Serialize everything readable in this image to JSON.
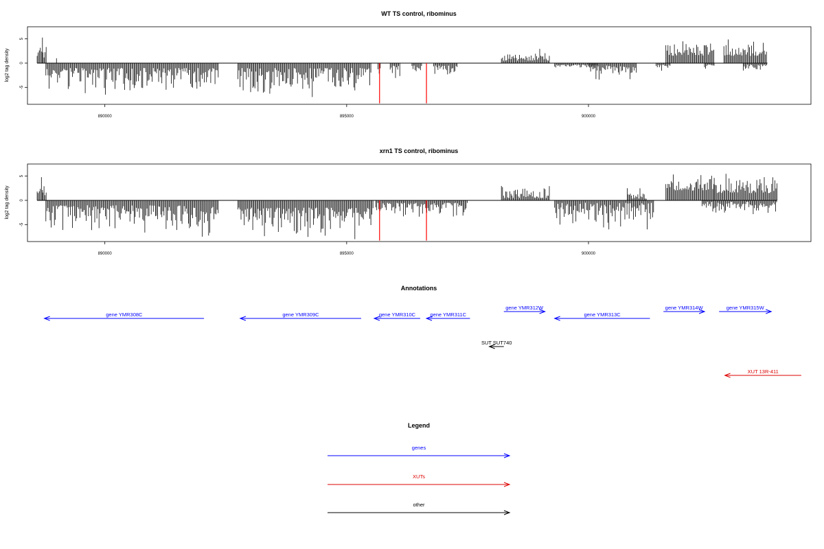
{
  "colors": {
    "bars": "#000000",
    "highlight": "#ff0000",
    "genes": "#0000ff",
    "xuts": "#dd0000",
    "other": "#000000"
  },
  "chart_data": [
    {
      "type": "bar",
      "title": "WT TS control, ribominus",
      "ylabel": "log2 tag density",
      "xlim": [
        888400,
        904600
      ],
      "ylim": [
        -8.5,
        7.5
      ],
      "xticks": [
        890000,
        895000,
        900000
      ],
      "yticks": [
        5,
        0,
        -5
      ],
      "segments": [
        {
          "start": 888600,
          "end": 888720,
          "sign": 1,
          "min": 1.5,
          "max": 6.0
        },
        {
          "start": 888720,
          "end": 888800,
          "sign": 1,
          "min": 1.0,
          "max": 3.8
        },
        {
          "start": 888780,
          "end": 892350,
          "sign": -1,
          "min": 1.0,
          "max": 6.5
        },
        {
          "start": 892750,
          "end": 895500,
          "sign": -1,
          "min": 1.0,
          "max": 7.0
        },
        {
          "start": 895650,
          "end": 895700,
          "sign": -1,
          "min": 1.0,
          "max": 2.5
        },
        {
          "start": 895900,
          "end": 896100,
          "sign": -1,
          "min": 0.5,
          "max": 3.5
        },
        {
          "start": 896350,
          "end": 896550,
          "sign": -1,
          "min": 0.5,
          "max": 2.0
        },
        {
          "start": 896800,
          "end": 897300,
          "sign": -1,
          "min": 0.5,
          "max": 2.5
        },
        {
          "start": 898200,
          "end": 899200,
          "sign": 1,
          "min": 0.5,
          "max": 3.0
        },
        {
          "start": 899300,
          "end": 900200,
          "sign": -1,
          "min": 0.3,
          "max": 1.2
        },
        {
          "start": 900000,
          "end": 901000,
          "sign": -1,
          "min": 0.5,
          "max": 4.0
        },
        {
          "start": 901400,
          "end": 901700,
          "sign": -1,
          "min": 0.3,
          "max": 2.0
        },
        {
          "start": 901600,
          "end": 902600,
          "sign": 1,
          "min": 1.5,
          "max": 5.0
        },
        {
          "start": 902400,
          "end": 902600,
          "sign": -1,
          "min": 0.3,
          "max": 1.5
        },
        {
          "start": 902800,
          "end": 903700,
          "sign": 1,
          "min": 1.5,
          "max": 5.0
        },
        {
          "start": 903200,
          "end": 903700,
          "sign": -1,
          "min": 0.3,
          "max": 2.0
        }
      ],
      "spikes": [
        {
          "x": 889000,
          "y": 1.0
        }
      ],
      "highlights": [
        {
          "x": 895680,
          "y": -8.3
        },
        {
          "x": 896650,
          "y": -8.3
        }
      ]
    },
    {
      "type": "bar",
      "title": "xrn1 TS control, ribominus",
      "ylabel": "log2 tag density",
      "xlim": [
        888400,
        904600
      ],
      "ylim": [
        -8.5,
        7.5
      ],
      "xticks": [
        890000,
        895000,
        900000
      ],
      "yticks": [
        5,
        0,
        -5
      ],
      "segments": [
        {
          "start": 888600,
          "end": 888720,
          "sign": 1,
          "min": 1.5,
          "max": 6.5
        },
        {
          "start": 888720,
          "end": 888800,
          "sign": 1,
          "min": 1.0,
          "max": 3.8
        },
        {
          "start": 888780,
          "end": 892350,
          "sign": -1,
          "min": 1.0,
          "max": 7.5
        },
        {
          "start": 892750,
          "end": 895550,
          "sign": -1,
          "min": 1.5,
          "max": 8.0
        },
        {
          "start": 895600,
          "end": 897500,
          "sign": -1,
          "min": 0.5,
          "max": 4.0
        },
        {
          "start": 898200,
          "end": 899200,
          "sign": 1,
          "min": 0.5,
          "max": 3.5
        },
        {
          "start": 899300,
          "end": 901350,
          "sign": -1,
          "min": 0.5,
          "max": 6.0
        },
        {
          "start": 900800,
          "end": 901200,
          "sign": 1,
          "min": 0.3,
          "max": 2.5
        },
        {
          "start": 901600,
          "end": 902600,
          "sign": 1,
          "min": 2.0,
          "max": 6.0
        },
        {
          "start": 902350,
          "end": 903900,
          "sign": -1,
          "min": 0.3,
          "max": 3.0
        },
        {
          "start": 902600,
          "end": 903900,
          "sign": 1,
          "min": 1.5,
          "max": 6.2
        }
      ],
      "spikes": [],
      "highlights": [
        {
          "x": 895680,
          "y": -8.3
        },
        {
          "x": 896650,
          "y": -8.3
        }
      ]
    }
  ],
  "annotations": {
    "title": "Annotations",
    "features": [
      {
        "label": "gene YMR308C",
        "start": 888750,
        "end": 892050,
        "strand": "-",
        "cls": "genes"
      },
      {
        "label": "gene YMR309C",
        "start": 892800,
        "end": 895300,
        "strand": "-",
        "cls": "genes"
      },
      {
        "label": "gene YMR310C",
        "start": 895570,
        "end": 896520,
        "strand": "-",
        "cls": "genes"
      },
      {
        "label": "gene YMR311C",
        "start": 896650,
        "end": 897550,
        "strand": "-",
        "cls": "genes"
      },
      {
        "label": "gene YMR312W",
        "start": 898250,
        "end": 899100,
        "strand": "+",
        "cls": "genes"
      },
      {
        "label": "gene YMR313C",
        "start": 899300,
        "end": 901270,
        "strand": "-",
        "cls": "genes"
      },
      {
        "label": "gene YMR314W",
        "start": 901550,
        "end": 902400,
        "strand": "+",
        "cls": "genes"
      },
      {
        "label": "gene YMR315W",
        "start": 902700,
        "end": 903780,
        "strand": "+",
        "cls": "genes"
      },
      {
        "label": "SUT SUT740",
        "start": 897950,
        "end": 898250,
        "strand": "-",
        "cls": "other"
      },
      {
        "label": "XUT 13R-411",
        "start": 902820,
        "end": 904400,
        "strand": "-",
        "cls": "xuts"
      }
    ]
  },
  "legend": {
    "title": "Legend",
    "items": [
      {
        "label": "genes",
        "cls": "genes"
      },
      {
        "label": "XUTs",
        "cls": "xuts"
      },
      {
        "label": "other",
        "cls": "other"
      }
    ]
  }
}
